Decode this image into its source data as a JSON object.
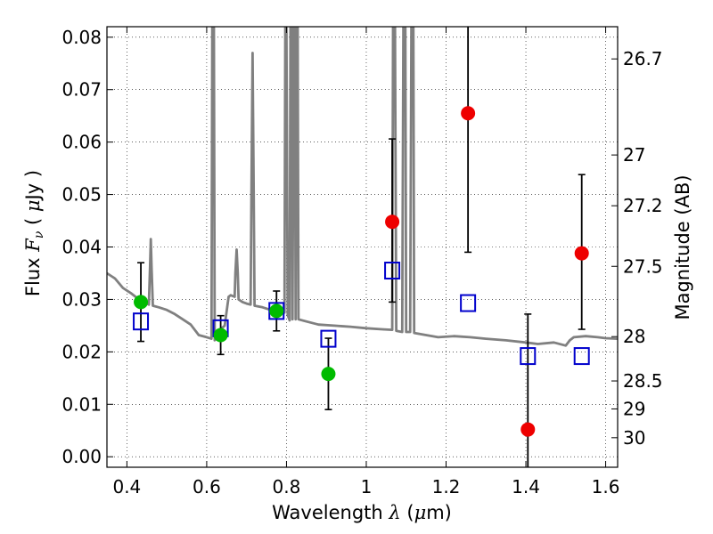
{
  "chart_data": {
    "type": "scatter",
    "xlabel_parts": [
      "Wavelength  ",
      "λ",
      " (",
      "μ",
      "m)"
    ],
    "ylabel_parts": [
      "Flux  ",
      "F",
      "ν",
      "  ( ",
      "μ",
      "Jy )"
    ],
    "y2label": "Magnitude (AB)",
    "xlim": [
      0.35,
      1.63
    ],
    "ylim": [
      -0.002,
      0.082
    ],
    "x_ticks": [
      0.4,
      0.6,
      0.8,
      1.0,
      1.2,
      1.4,
      1.6
    ],
    "x_tick_labels": [
      "0.4",
      "0.6",
      "0.8",
      "1",
      "1.2",
      "1.4",
      "1.6"
    ],
    "y_ticks": [
      0.0,
      0.01,
      0.02,
      0.03,
      0.04,
      0.05,
      0.06,
      0.07,
      0.08
    ],
    "y_tick_labels": [
      "0.00",
      "0.01",
      "0.02",
      "0.03",
      "0.04",
      "0.05",
      "0.06",
      "0.07",
      "0.08"
    ],
    "mag_tick_labels": [
      "26.7",
      "27",
      "27.2",
      "27.5",
      "28",
      "28.5",
      "29",
      "30"
    ],
    "grid": true,
    "colors": {
      "model": "#808080",
      "green_points": "#00bb00",
      "red_points": "#ee0000",
      "model_boxes": "#0000cc",
      "errorbars": "#000000"
    },
    "series": [
      {
        "marker": "circle",
        "color": "#00bb00",
        "points": [
          {
            "x": 0.435,
            "y": 0.0295,
            "err_lo": 0.0075,
            "err_hi": 0.0075
          },
          {
            "x": 0.635,
            "y": 0.0232,
            "err_lo": 0.0037,
            "err_hi": 0.0037
          },
          {
            "x": 0.775,
            "y": 0.0278,
            "err_lo": 0.0038,
            "err_hi": 0.0038
          },
          {
            "x": 0.905,
            "y": 0.0158,
            "err_lo": 0.0068,
            "err_hi": 0.0068
          }
        ]
      },
      {
        "marker": "circle",
        "color": "#ee0000",
        "points": [
          {
            "x": 1.065,
            "y": 0.0448,
            "err_lo": 0.0153,
            "err_hi": 0.0158
          },
          {
            "x": 1.255,
            "y": 0.0655,
            "err_lo": 0.0265,
            "err_hi": 0.0175
          },
          {
            "x": 1.405,
            "y": 0.0052,
            "err_lo": 0.0072,
            "err_hi": 0.022
          },
          {
            "x": 1.54,
            "y": 0.0388,
            "err_lo": 0.0145,
            "err_hi": 0.015
          }
        ]
      },
      {
        "marker": "square",
        "color": "#0000cc",
        "points": [
          {
            "x": 0.435,
            "y": 0.0258
          },
          {
            "x": 0.635,
            "y": 0.0245
          },
          {
            "x": 0.775,
            "y": 0.0278
          },
          {
            "x": 0.905,
            "y": 0.0225
          },
          {
            "x": 1.065,
            "y": 0.0355
          },
          {
            "x": 1.255,
            "y": 0.0293
          },
          {
            "x": 1.405,
            "y": 0.0192
          },
          {
            "x": 1.54,
            "y": 0.0192
          }
        ]
      },
      {
        "marker": "line",
        "color": "#808080",
        "points": [
          [
            0.35,
            0.035
          ],
          [
            0.37,
            0.034
          ],
          [
            0.39,
            0.0322
          ],
          [
            0.41,
            0.0312
          ],
          [
            0.43,
            0.03
          ],
          [
            0.45,
            0.0292
          ],
          [
            0.455,
            0.029
          ],
          [
            0.458,
            0.036
          ],
          [
            0.46,
            0.0415
          ],
          [
            0.462,
            0.036
          ],
          [
            0.465,
            0.0288
          ],
          [
            0.48,
            0.0285
          ],
          [
            0.5,
            0.028
          ],
          [
            0.52,
            0.0272
          ],
          [
            0.54,
            0.0262
          ],
          [
            0.56,
            0.0252
          ],
          [
            0.58,
            0.0232
          ],
          [
            0.6,
            0.0228
          ],
          [
            0.612,
            0.0225
          ],
          [
            0.614,
            0.082
          ],
          [
            0.618,
            0.082
          ],
          [
            0.62,
            0.0222
          ],
          [
            0.63,
            0.024
          ],
          [
            0.645,
            0.025
          ],
          [
            0.655,
            0.0305
          ],
          [
            0.66,
            0.0308
          ],
          [
            0.67,
            0.0305
          ],
          [
            0.672,
            0.035
          ],
          [
            0.675,
            0.0395
          ],
          [
            0.678,
            0.035
          ],
          [
            0.68,
            0.03
          ],
          [
            0.69,
            0.0295
          ],
          [
            0.7,
            0.0292
          ],
          [
            0.71,
            0.029
          ],
          [
            0.712,
            0.05
          ],
          [
            0.715,
            0.077
          ],
          [
            0.718,
            0.05
          ],
          [
            0.72,
            0.0288
          ],
          [
            0.74,
            0.0285
          ],
          [
            0.76,
            0.028
          ],
          [
            0.78,
            0.0276
          ],
          [
            0.795,
            0.0275
          ],
          [
            0.797,
            0.082
          ],
          [
            0.8,
            0.082
          ],
          [
            0.803,
            0.027
          ],
          [
            0.808,
            0.026
          ],
          [
            0.81,
            0.082
          ],
          [
            0.813,
            0.082
          ],
          [
            0.815,
            0.0262
          ],
          [
            0.818,
            0.082
          ],
          [
            0.821,
            0.082
          ],
          [
            0.823,
            0.0262
          ],
          [
            0.825,
            0.082
          ],
          [
            0.828,
            0.082
          ],
          [
            0.83,
            0.0262
          ],
          [
            0.85,
            0.0258
          ],
          [
            0.88,
            0.0252
          ],
          [
            0.92,
            0.025
          ],
          [
            0.96,
            0.0248
          ],
          [
            1.0,
            0.0245
          ],
          [
            1.04,
            0.0243
          ],
          [
            1.065,
            0.0242
          ],
          [
            1.067,
            0.082
          ],
          [
            1.072,
            0.082
          ],
          [
            1.075,
            0.024
          ],
          [
            1.09,
            0.0238
          ],
          [
            1.093,
            0.082
          ],
          [
            1.098,
            0.082
          ],
          [
            1.1,
            0.0238
          ],
          [
            1.11,
            0.0238
          ],
          [
            1.113,
            0.082
          ],
          [
            1.118,
            0.082
          ],
          [
            1.12,
            0.0236
          ],
          [
            1.15,
            0.0232
          ],
          [
            1.18,
            0.0228
          ],
          [
            1.22,
            0.023
          ],
          [
            1.26,
            0.0228
          ],
          [
            1.3,
            0.0225
          ],
          [
            1.35,
            0.0222
          ],
          [
            1.4,
            0.0218
          ],
          [
            1.43,
            0.0215
          ],
          [
            1.47,
            0.0218
          ],
          [
            1.5,
            0.0212
          ],
          [
            1.51,
            0.0222
          ],
          [
            1.52,
            0.0228
          ],
          [
            1.55,
            0.023
          ],
          [
            1.58,
            0.0228
          ],
          [
            1.6,
            0.0226
          ],
          [
            1.63,
            0.0225
          ]
        ]
      }
    ]
  }
}
